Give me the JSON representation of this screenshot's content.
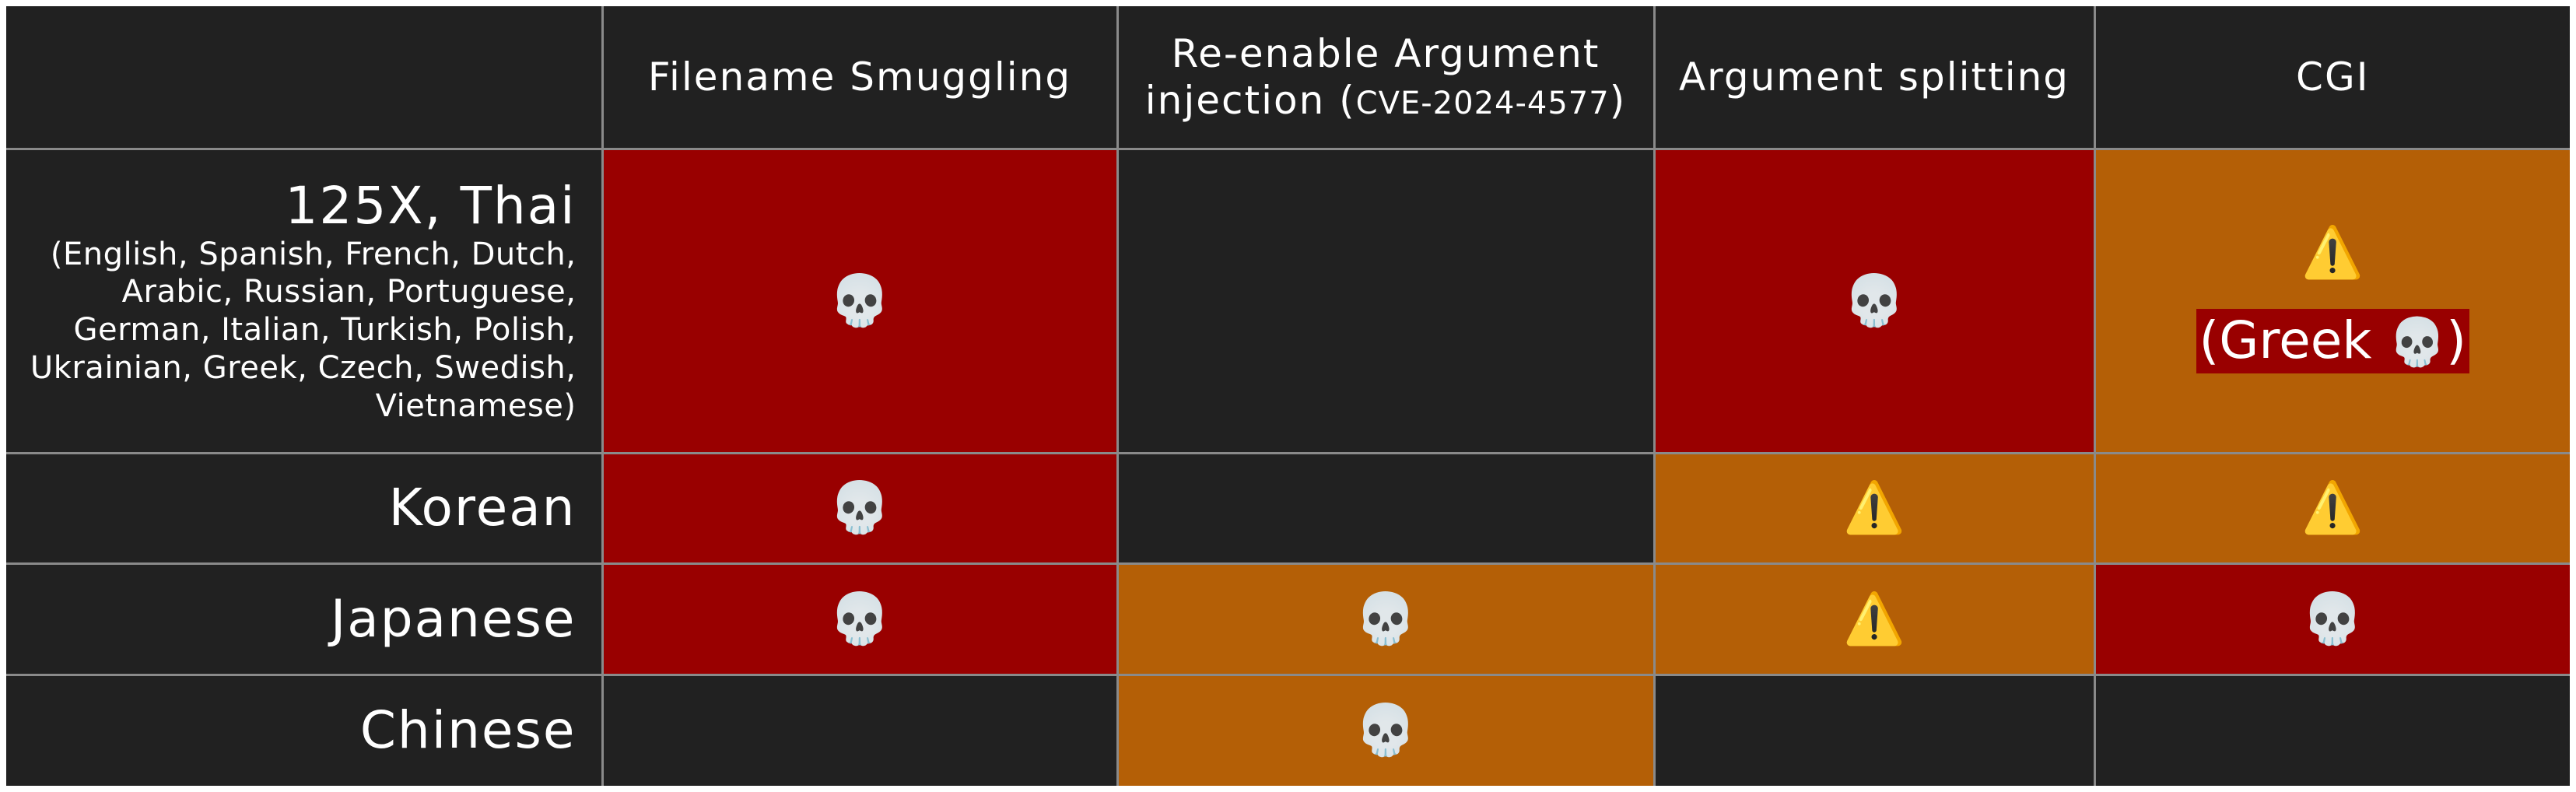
{
  "header": {
    "corner": "",
    "columns": [
      {
        "label": "Filename Smuggling"
      },
      {
        "label_line1": "Re-enable Argument",
        "label_line2_prefix": "injection (",
        "label_cve": "CVE-2024-4577",
        "label_line2_suffix": ")"
      },
      {
        "label": "Argument splitting"
      },
      {
        "label": "CGI"
      }
    ]
  },
  "rows": [
    {
      "label": "125X, Thai",
      "sublabel": "(English, Spanish, French, Dutch, Arabic, Russian, Portuguese, German, Italian, Turkish, Polish, Ukrainian, Greek, Czech, Swedish, Vietnamese)",
      "cells": [
        {
          "status": "critical",
          "color": "#990000",
          "icon": "skull-icon",
          "glyph": "💀"
        },
        {
          "status": "none",
          "color": "#212121",
          "icon": "",
          "glyph": ""
        },
        {
          "status": "critical",
          "color": "#990000",
          "icon": "skull-icon",
          "glyph": "💀"
        },
        {
          "status": "warning",
          "color": "#b45f06",
          "icon": "warning-icon",
          "glyph": "⚠️",
          "note_prefix": "(Greek ",
          "note_glyph": "💀",
          "note_suffix": ")",
          "note_color": "#990000"
        }
      ]
    },
    {
      "label": "Korean",
      "cells": [
        {
          "status": "critical",
          "color": "#990000",
          "icon": "skull-icon",
          "glyph": "💀"
        },
        {
          "status": "none",
          "color": "#212121",
          "icon": "",
          "glyph": ""
        },
        {
          "status": "warning",
          "color": "#b45f06",
          "icon": "warning-icon",
          "glyph": "⚠️"
        },
        {
          "status": "warning",
          "color": "#b45f06",
          "icon": "warning-icon",
          "glyph": "⚠️"
        }
      ]
    },
    {
      "label": "Japanese",
      "cells": [
        {
          "status": "critical",
          "color": "#990000",
          "icon": "skull-icon",
          "glyph": "💀"
        },
        {
          "status": "warning",
          "color": "#b45f06",
          "icon": "skull-icon",
          "glyph": "💀"
        },
        {
          "status": "warning",
          "color": "#b45f06",
          "icon": "warning-icon",
          "glyph": "⚠️"
        },
        {
          "status": "critical",
          "color": "#990000",
          "icon": "skull-icon",
          "glyph": "💀"
        }
      ]
    },
    {
      "label": "Chinese",
      "cells": [
        {
          "status": "none",
          "color": "#212121",
          "icon": "",
          "glyph": ""
        },
        {
          "status": "warning",
          "color": "#b45f06",
          "icon": "skull-icon",
          "glyph": "💀"
        },
        {
          "status": "none",
          "color": "#212121",
          "icon": "",
          "glyph": ""
        },
        {
          "status": "none",
          "color": "#212121",
          "icon": "",
          "glyph": ""
        }
      ]
    }
  ],
  "colors": {
    "critical": "#990000",
    "warning": "#b45f06",
    "background": "#212121",
    "grid": "#8a8a8a"
  }
}
